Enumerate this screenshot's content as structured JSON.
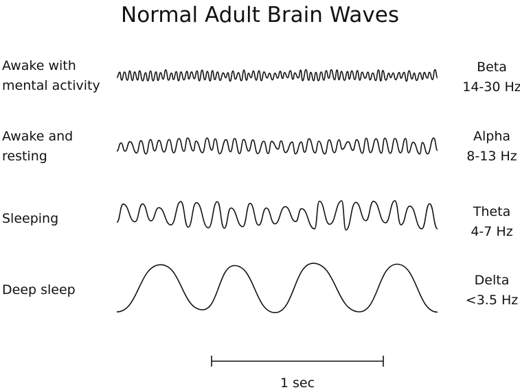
{
  "title": "Normal Adult Brain Waves",
  "rows": [
    {
      "state": [
        "Awake with",
        "mental activity"
      ],
      "band": "Beta",
      "range": "14-30 Hz"
    },
    {
      "state": [
        "Awake and",
        "resting"
      ],
      "band": "Alpha",
      "range": "8-13 Hz"
    },
    {
      "state": [
        "Sleeping"
      ],
      "band": "Theta",
      "range": "4-7 Hz"
    },
    {
      "state": [
        "Deep sleep"
      ],
      "band": "Delta",
      "range": "<3.5 Hz"
    }
  ],
  "scale_bar": {
    "label": "1 sec"
  },
  "line_color": "#111111"
}
